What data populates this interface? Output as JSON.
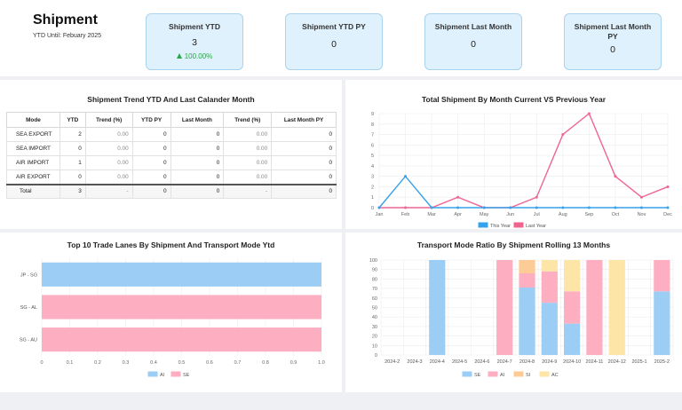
{
  "header": {
    "title": "Shipment",
    "subtitle": "YTD Until: Febuary 2025"
  },
  "kpis": [
    {
      "title": "Shipment YTD",
      "value": "3",
      "trend": "100.00%"
    },
    {
      "title": "Shipment YTD PY",
      "value": "0"
    },
    {
      "title": "Shipment Last Month",
      "value": "0"
    },
    {
      "title": "Shipment Last Month PY",
      "value": "0"
    }
  ],
  "trend_table": {
    "title": "Shipment Trend YTD And Last Calander Month",
    "columns": [
      "Mode",
      "YTD",
      "Trend (%)",
      "YTD PY",
      "Last Month",
      "Trend (%)",
      "Last Month PY"
    ],
    "rows": [
      [
        "SEA EXPORT",
        "2",
        "0.00",
        "0",
        "0",
        "0.00",
        "0"
      ],
      [
        "SEA IMPORT",
        "0",
        "0.00",
        "0",
        "0",
        "0.00",
        "0"
      ],
      [
        "AIR IMPORT",
        "1",
        "0.00",
        "0",
        "0",
        "0.00",
        "0"
      ],
      [
        "AIR EXPORT",
        "0",
        "0.00",
        "0",
        "0",
        "0.00",
        "0"
      ]
    ],
    "total": [
      "Total",
      "3",
      "-",
      "0",
      "0",
      "-",
      "0"
    ]
  },
  "chart_data": [
    {
      "type": "line",
      "title": "Total Shipment By Month Current VS Previous Year",
      "categories": [
        "Jan",
        "Feb",
        "Mar",
        "Apr",
        "May",
        "Jun",
        "Jul",
        "Aug",
        "Sep",
        "Oct",
        "Nov",
        "Dec"
      ],
      "series": [
        {
          "name": "This Year",
          "color": "#36a2eb",
          "values": [
            0,
            3,
            0,
            0,
            0,
            0,
            0,
            0,
            0,
            0,
            0,
            0
          ]
        },
        {
          "name": "Last Year",
          "color": "#f06590",
          "values": [
            0,
            0,
            0,
            1,
            0,
            0,
            1,
            7,
            9,
            3,
            1,
            2
          ]
        }
      ],
      "ylim": [
        0,
        9
      ],
      "yticks": [
        "0",
        "1",
        "2",
        "3",
        "4",
        "5",
        "6",
        "7",
        "8",
        "9"
      ],
      "legend": "bottom"
    },
    {
      "type": "bar",
      "orientation": "horizontal",
      "title": "Top 10 Trade Lanes By Shipment And Transport Mode Ytd",
      "categories": [
        "JP - SG",
        "SG - AL",
        "SG - AU"
      ],
      "series": [
        {
          "name": "AI",
          "color": "#9ccdf4",
          "values": [
            1,
            0,
            0
          ]
        },
        {
          "name": "SE",
          "color": "#fdaec1",
          "values": [
            0,
            1,
            1
          ]
        }
      ],
      "xlim": [
        0,
        1
      ],
      "xticks": [
        "0",
        "0.1",
        "0.2",
        "0.3",
        "0.4",
        "0.5",
        "0.6",
        "0.7",
        "0.8",
        "0.9",
        "1.0"
      ],
      "legend": "bottom"
    },
    {
      "type": "bar",
      "stacked": true,
      "title": "Transport Mode Ratio By Shipment Rolling 13 Months",
      "categories": [
        "2024-2",
        "2024-3",
        "2024-4",
        "2024-5",
        "2024-6",
        "2024-7",
        "2024-8",
        "2024-9",
        "2024-10",
        "2024-11",
        "2024-12",
        "2025-1",
        "2025-2"
      ],
      "series": [
        {
          "name": "SE",
          "color": "#9ccdf4",
          "values": [
            0,
            0,
            100,
            0,
            0,
            0,
            71,
            55,
            33,
            0,
            0,
            0,
            67
          ]
        },
        {
          "name": "AI",
          "color": "#fdaec1",
          "values": [
            0,
            0,
            0,
            0,
            0,
            100,
            15,
            33,
            34,
            100,
            0,
            0,
            33
          ]
        },
        {
          "name": "SI",
          "color": "#fdcc96",
          "values": [
            0,
            0,
            0,
            0,
            0,
            0,
            14,
            0,
            0,
            0,
            0,
            0,
            0
          ]
        },
        {
          "name": "AC",
          "color": "#fde5a8",
          "values": [
            0,
            0,
            0,
            0,
            0,
            0,
            0,
            12,
            33,
            0,
            100,
            0,
            0
          ]
        }
      ],
      "ylim": [
        0,
        100
      ],
      "yticks": [
        "0",
        "10",
        "20",
        "30",
        "40",
        "50",
        "60",
        "70",
        "80",
        "90",
        "100"
      ],
      "legend": "bottom"
    }
  ]
}
